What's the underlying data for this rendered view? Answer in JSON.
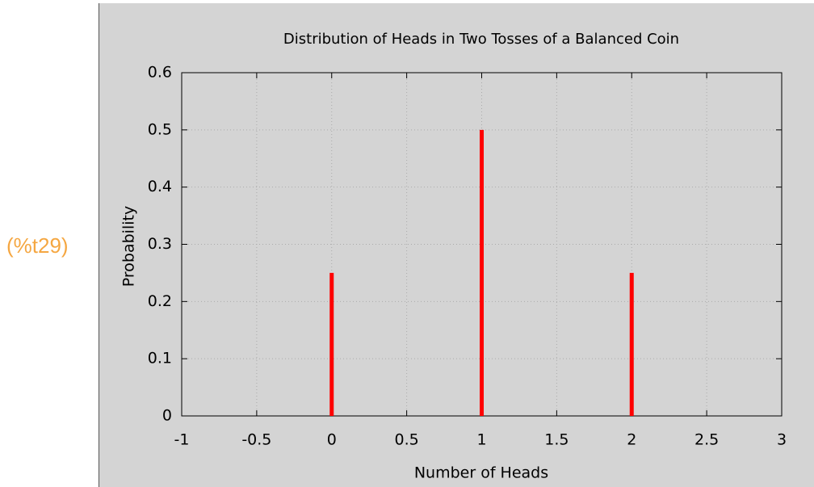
{
  "output_label": "(%t29)",
  "chart_data": {
    "type": "bar",
    "title": "Distribution of Heads in Two Tosses of a Balanced Coin",
    "xlabel": "Number of Heads",
    "ylabel": "Probability",
    "x": [
      0,
      1,
      2
    ],
    "values": [
      0.25,
      0.5,
      0.25
    ],
    "color": "#ff0000",
    "xlim": [
      -1,
      3
    ],
    "xticks": [
      -1,
      -0.5,
      0,
      0.5,
      1,
      1.5,
      2,
      2.5,
      3
    ],
    "ylim": [
      0,
      0.6
    ],
    "yticks": [
      0,
      0.1,
      0.2,
      0.3,
      0.4,
      0.5,
      0.6
    ],
    "grid": true
  }
}
